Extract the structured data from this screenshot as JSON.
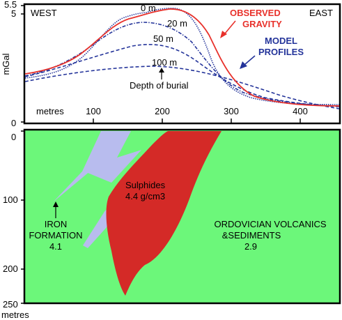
{
  "top_panel": {
    "axis_y_label": "mGal",
    "y_ticks": [
      "5.5",
      "5",
      "0"
    ],
    "x_unit_label": "metres",
    "x_ticks": [
      "100",
      "200",
      "300",
      "400"
    ],
    "west_label": "WEST",
    "east_label": "EAST",
    "observed_line1": "OBSERVED",
    "observed_line2": "GRAVITY",
    "model_line1": "MODEL",
    "model_line2": "PROFILES",
    "depth_labels": [
      "0 m",
      "20 m",
      "50 m",
      "100 m"
    ],
    "depth_of_burial": "Depth of burial",
    "colors": {
      "observed": "#e8312b",
      "model": "#24349a"
    }
  },
  "bottom_panel": {
    "y_ticks": [
      "0",
      "100",
      "200",
      "250"
    ],
    "y_unit_label": "metres",
    "sulphides_line1": "Sulphides",
    "sulphides_line2": "4.4 g/cm3",
    "iron_line1": "IRON",
    "iron_line2": "FORMATION",
    "iron_line3": "4.1",
    "volc_line1": "ORDOVICIAN VOLCANICS",
    "volc_line2": "&SEDIMENTS",
    "volc_line3": "2.9",
    "colors": {
      "background": "#6cf77a",
      "sulphides": "#d42a27",
      "iron": "#b8bcee"
    }
  }
}
